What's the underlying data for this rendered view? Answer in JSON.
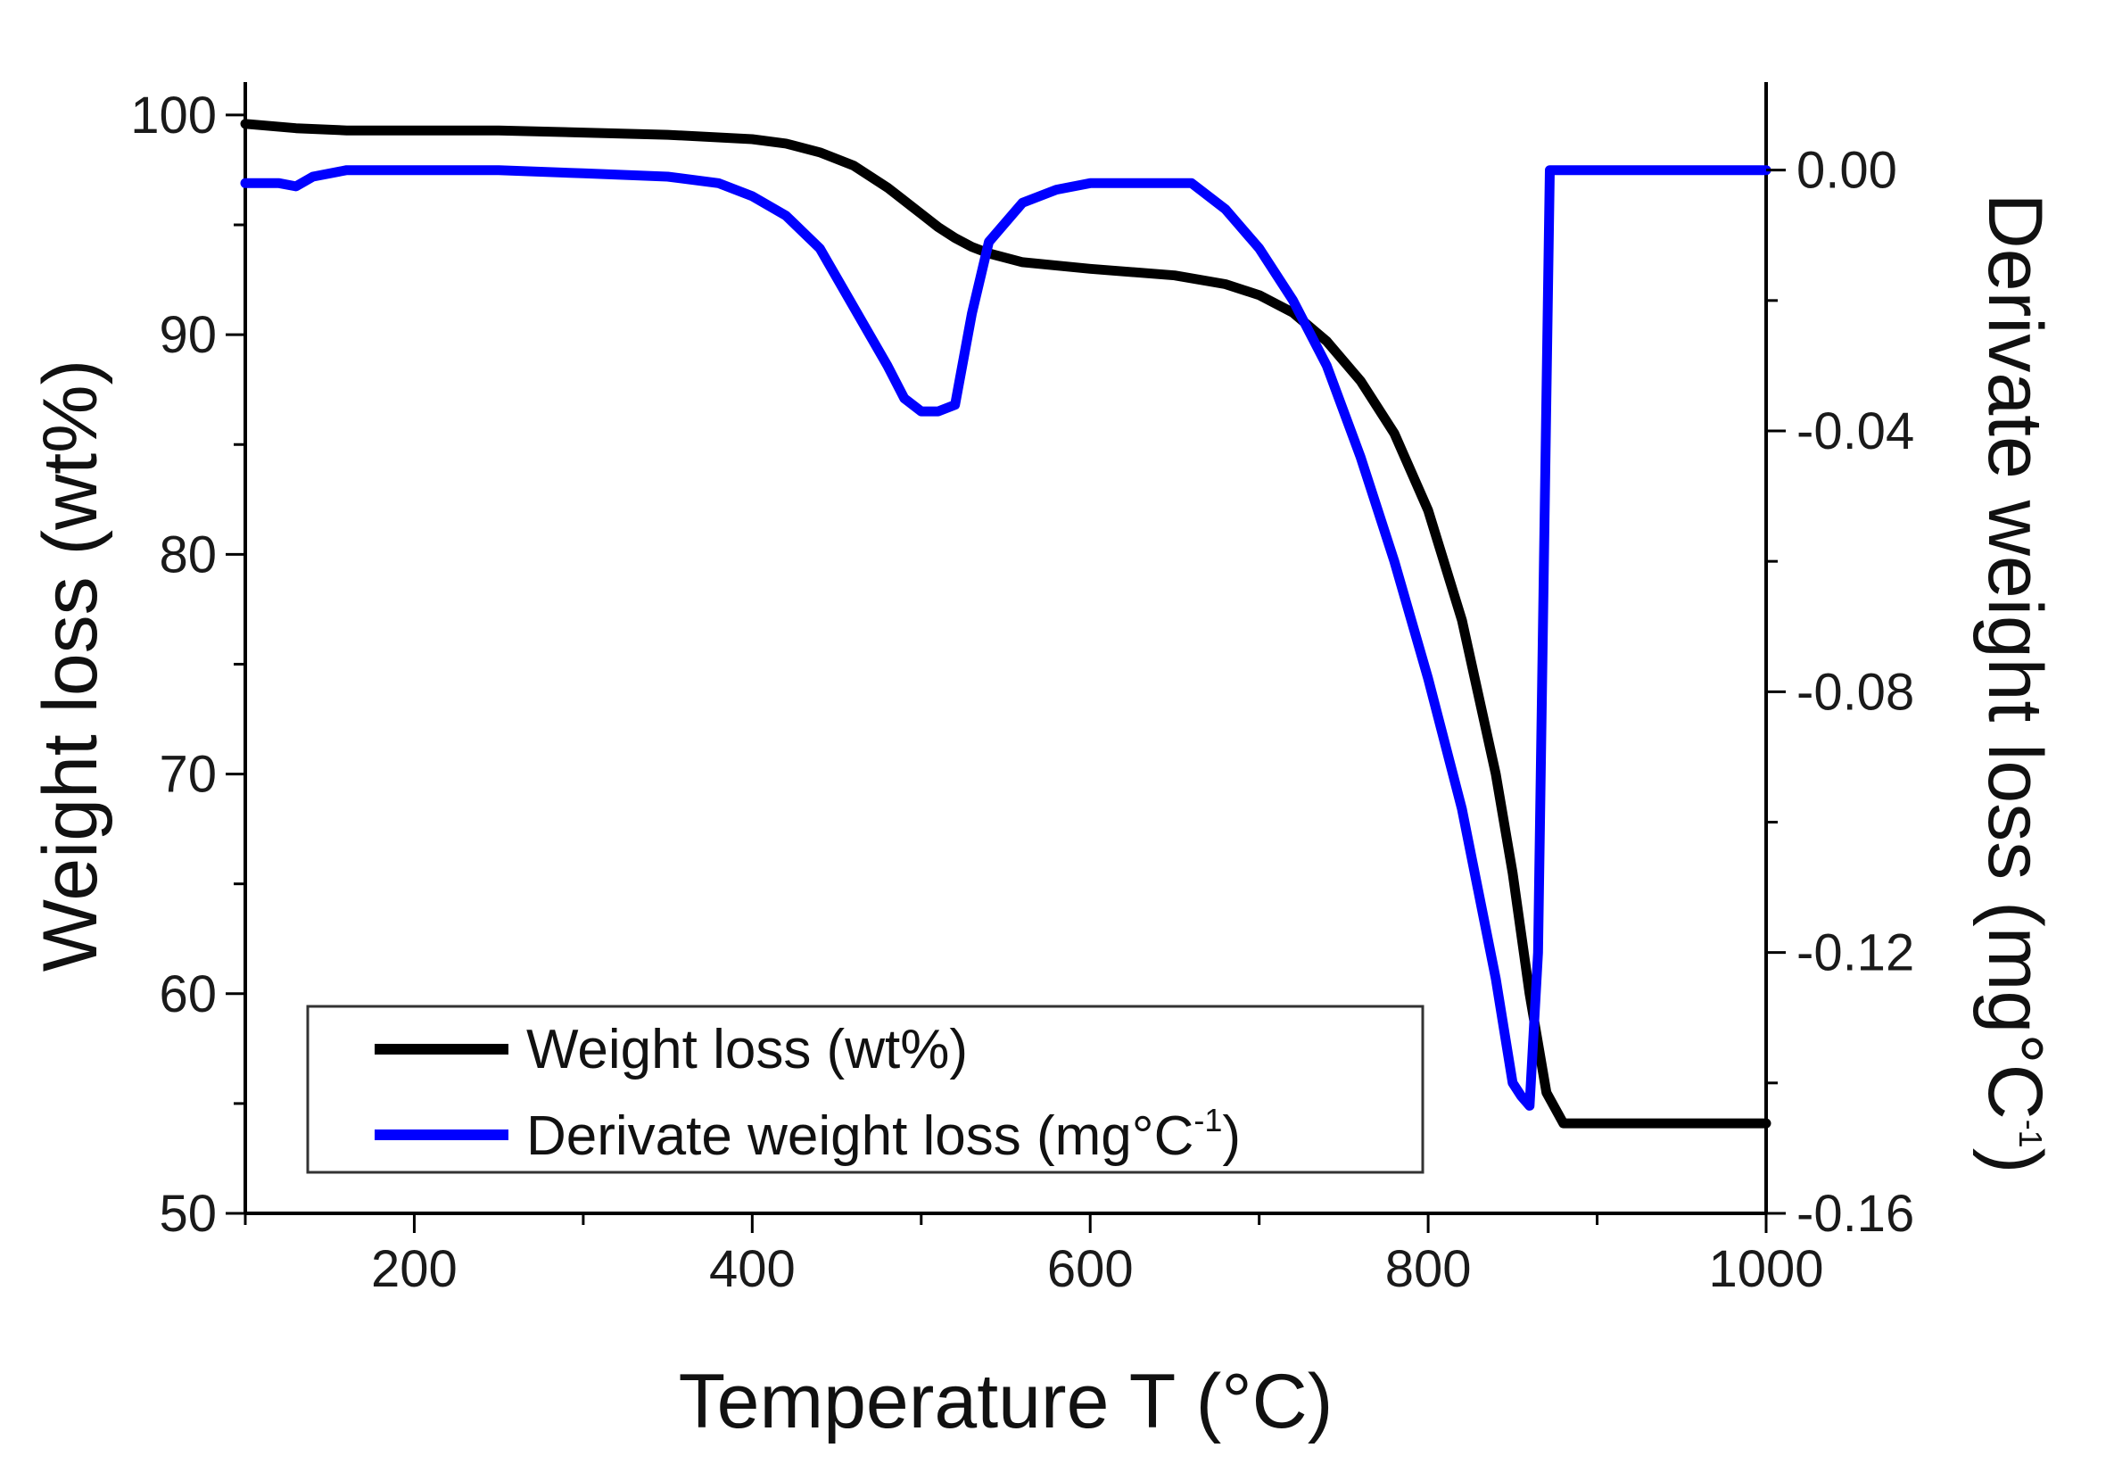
{
  "chart_data": {
    "type": "line",
    "xlabel": "Temperature T (°C)",
    "ylabel_left": "Weight loss (wt%)",
    "ylabel_right_main": "Derivate weight loss (mg°C",
    "ylabel_right_sup": "-1",
    "ylabel_right_close": ")",
    "xlim": [
      100,
      1000
    ],
    "ylim_left": [
      50,
      101.5
    ],
    "ylim_right": [
      -0.16,
      0.0135
    ],
    "x_ticks": [
      200,
      400,
      600,
      800,
      1000
    ],
    "x_tick_labels": [
      "200",
      "400",
      "600",
      "800",
      "1000"
    ],
    "y_left_ticks": [
      50,
      60,
      70,
      80,
      90,
      100
    ],
    "y_left_tick_labels": [
      "50",
      "60",
      "70",
      "80",
      "90",
      "100"
    ],
    "y_right_ticks": [
      -0.16,
      -0.12,
      -0.08,
      -0.04,
      0.0
    ],
    "y_right_tick_labels": [
      "-0.16",
      "-0.12",
      "-0.08",
      "-0.04",
      "0.00"
    ],
    "legend": {
      "position": "lower-left",
      "entries": [
        {
          "label": "Weight loss (wt%)",
          "series": "weight_loss"
        },
        {
          "label_main": "Derivate weight loss (mg°C",
          "label_sup": "-1",
          "label_close": ")",
          "series": "derivative"
        }
      ]
    },
    "colors": {
      "weight_loss": "#000000",
      "derivative": "#0000ff",
      "axis": "#000000"
    },
    "series": [
      {
        "name": "Weight loss (wt%)",
        "key": "weight_loss",
        "axis": "left",
        "x": [
          100,
          130,
          160,
          200,
          250,
          300,
          350,
          400,
          420,
          440,
          460,
          480,
          500,
          510,
          520,
          530,
          540,
          560,
          600,
          650,
          680,
          700,
          720,
          740,
          760,
          780,
          800,
          820,
          840,
          850,
          860,
          870,
          880,
          900,
          950,
          1000
        ],
        "y": [
          99.6,
          99.4,
          99.3,
          99.3,
          99.3,
          99.2,
          99.1,
          98.9,
          98.7,
          98.3,
          97.7,
          96.7,
          95.5,
          94.9,
          94.4,
          94.0,
          93.7,
          93.3,
          93.0,
          92.7,
          92.3,
          91.8,
          91.0,
          89.7,
          87.9,
          85.5,
          82.0,
          77.0,
          70.0,
          65.5,
          60.0,
          55.5,
          54.1,
          54.1,
          54.1,
          54.1
        ]
      },
      {
        "name": "Derivate weight loss (mg°C-1)",
        "key": "derivative",
        "axis": "right",
        "x": [
          100,
          120,
          130,
          140,
          160,
          200,
          250,
          300,
          350,
          380,
          400,
          420,
          440,
          460,
          480,
          490,
          500,
          510,
          520,
          530,
          540,
          560,
          580,
          600,
          620,
          660,
          680,
          700,
          720,
          740,
          760,
          780,
          800,
          820,
          840,
          850,
          855,
          860,
          865,
          872,
          880,
          900,
          950,
          1000
        ],
        "y": [
          -0.002,
          -0.002,
          -0.0025,
          -0.001,
          0.0,
          0.0,
          0.0,
          -0.0005,
          -0.001,
          -0.002,
          -0.004,
          -0.007,
          -0.012,
          -0.021,
          -0.03,
          -0.035,
          -0.037,
          -0.037,
          -0.036,
          -0.022,
          -0.011,
          -0.005,
          -0.003,
          -0.002,
          -0.002,
          -0.002,
          -0.006,
          -0.012,
          -0.02,
          -0.03,
          -0.044,
          -0.06,
          -0.078,
          -0.098,
          -0.124,
          -0.14,
          -0.142,
          -0.1435,
          -0.12,
          0.0,
          0.0,
          0.0,
          0.0,
          0.0
        ]
      }
    ]
  }
}
